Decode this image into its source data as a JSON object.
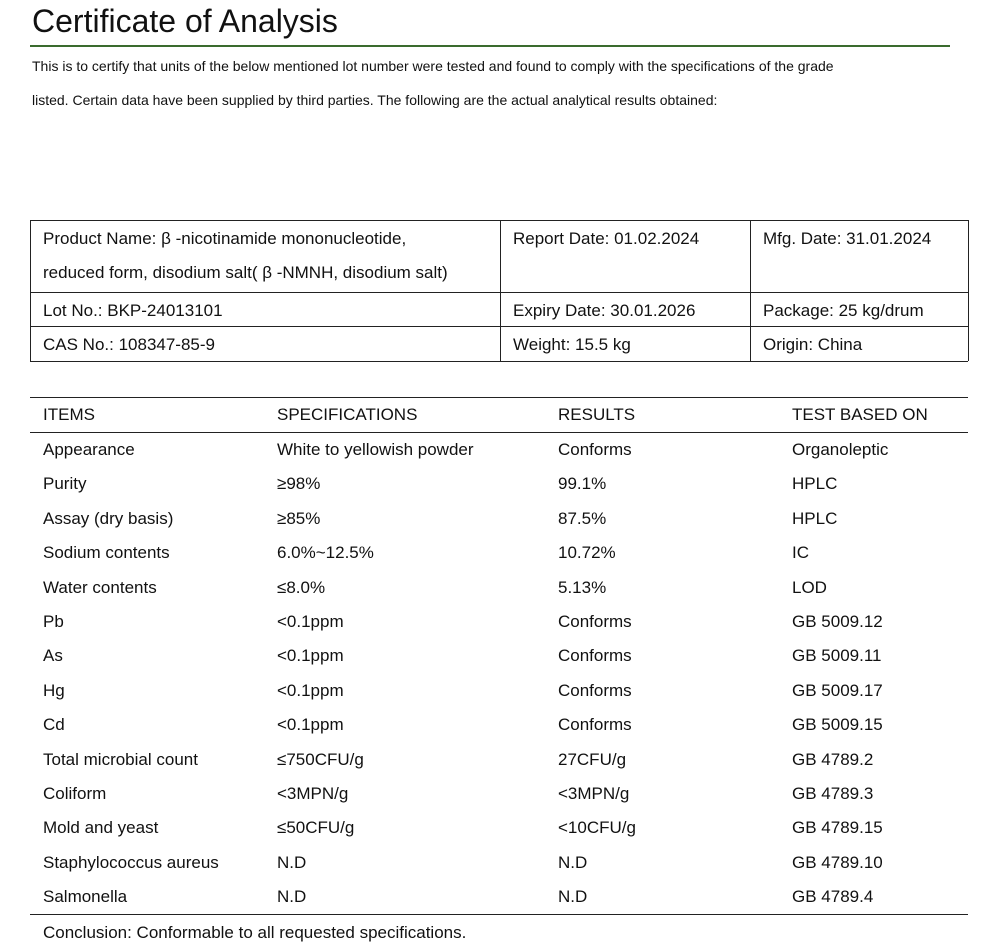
{
  "header": {
    "title": "Certificate of Analysis",
    "intro_lines": [
      "This is to certify that units of the below mentioned lot number were tested and found to comply with the specifications of the grade",
      "listed. Certain data have been supplied by third parties.  The following are the actual analytical results obtained:"
    ]
  },
  "info": {
    "rows": [
      [
        [
          "Product Name: β -nicotinamide mononucleotide,",
          "reduced form, disodium salt( β -NMNH, disodium salt)"
        ],
        [
          "Report Date: 01.02.2024"
        ],
        [
          "Mfg. Date: 31.01.2024"
        ]
      ],
      [
        [
          "Lot No.: BKP-24013101"
        ],
        [
          "Expiry Date: 30.01.2026"
        ],
        [
          "Package: 25 kg/drum"
        ]
      ],
      [
        [
          "CAS No.: 108347-85-9"
        ],
        [
          "Weight: 15.5 kg"
        ],
        [
          "Origin: China"
        ]
      ]
    ]
  },
  "table": {
    "header": [
      "ITEMS",
      "SPECIFICATIONS",
      "RESULTS",
      "TEST BASED ON"
    ],
    "rows": [
      [
        "Appearance",
        "White to yellowish powder",
        "Conforms",
        "Organoleptic"
      ],
      [
        "Purity",
        "≥98%",
        "99.1%",
        "HPLC"
      ],
      [
        "Assay (dry basis)",
        "≥85%",
        "87.5%",
        "HPLC"
      ],
      [
        "Sodium contents",
        "6.0%~12.5%",
        "10.72%",
        "IC"
      ],
      [
        "Water contents",
        "≤8.0%",
        "5.13%",
        "LOD"
      ],
      [
        "Pb",
        "<0.1ppm",
        "Conforms",
        "GB 5009.12"
      ],
      [
        "As",
        "<0.1ppm",
        "Conforms",
        "GB 5009.11"
      ],
      [
        "Hg",
        "<0.1ppm",
        "Conforms",
        "GB 5009.17"
      ],
      [
        "Cd",
        "<0.1ppm",
        "Conforms",
        "GB 5009.15"
      ],
      [
        "Total microbial count",
        "≤750CFU/g",
        "27CFU/g",
        "GB 4789.2"
      ],
      [
        "Coliform",
        "<3MPN/g",
        "<3MPN/g",
        "GB 4789.3"
      ],
      [
        "Mold and yeast",
        "≤50CFU/g",
        "<10CFU/g",
        "GB 4789.15"
      ],
      [
        "Staphylococcus aureus",
        "N.D",
        "N.D",
        "GB 4789.10"
      ],
      [
        "Salmonella",
        "N.D",
        "N.D",
        "GB 4789.4"
      ]
    ]
  },
  "conclusion": "Conclusion: Conformable to all requested specifications."
}
